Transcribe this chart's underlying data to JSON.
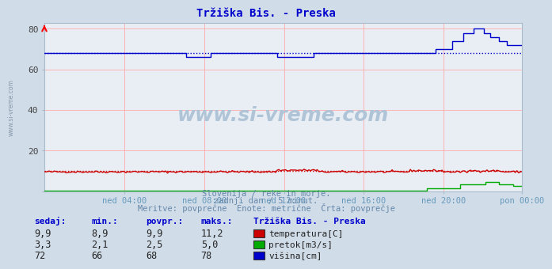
{
  "title": "Tržiška Bis. - Preska",
  "title_color": "#0000cc",
  "bg_color": "#d0dce8",
  "plot_bg_color": "#e8eef4",
  "xlabel_color": "#6699bb",
  "n_points": 288,
  "yticks": [
    0,
    20,
    40,
    60,
    80
  ],
  "ylim": [
    0,
    83
  ],
  "xtick_labels": [
    "ned 04:00",
    "ned 08:00",
    "ned 12:00",
    "ned 16:00",
    "ned 20:00",
    "pon 00:00"
  ],
  "xtick_positions": [
    48,
    96,
    144,
    192,
    240,
    287
  ],
  "temp_color": "#cc0000",
  "pretok_color": "#00aa00",
  "visina_color": "#0000cc",
  "avg_temp": 9.9,
  "avg_visina": 68,
  "footer_line1": "Slovenija / reke in morje.",
  "footer_line2": "zadnji dan / 5 minut.",
  "footer_line3": "Meritve: povprečne  Enote: metrične  Črta: povprečje",
  "footer_color": "#6688aa",
  "table_headers": [
    "sedaj:",
    "min.:",
    "povpr.:",
    "maks.:"
  ],
  "table_label": "Tržiška Bis. - Preska",
  "table_data": [
    [
      "9,9",
      "8,9",
      "9,9",
      "11,2",
      "#cc0000",
      "temperatura[C]"
    ],
    [
      "3,3",
      "2,1",
      "2,5",
      "5,0",
      "#00aa00",
      "pretok[m3/s]"
    ],
    [
      "72",
      "66",
      "68",
      "78",
      "#0000cc",
      "višina[cm]"
    ]
  ],
  "watermark": "www.si-vreme.com",
  "watermark_color": "#b0c4d8",
  "left_label": "www.si-vreme.com",
  "left_label_color": "#8899aa"
}
